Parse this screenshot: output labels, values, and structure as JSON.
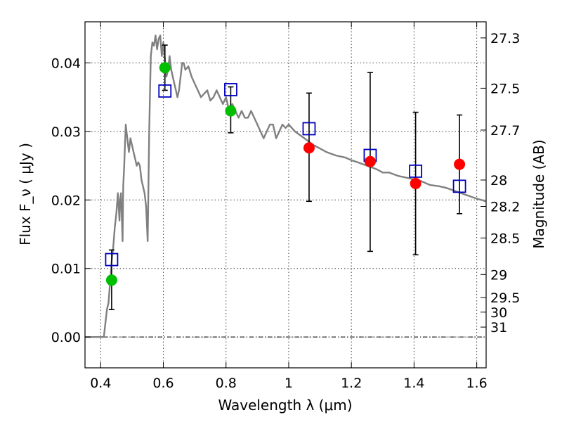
{
  "chart_data": {
    "type": "scatter",
    "title": "",
    "xlabel": "Wavelength  λ (μm)",
    "ylabel": "Flux  F_ν  ( μJy )",
    "ylabel_right": "Magnitude (AB)",
    "xlim": [
      0.35,
      1.63
    ],
    "ylim": [
      -0.0045,
      0.046
    ],
    "grid": true,
    "x_ticks": [
      {
        "value": 0.4,
        "label": "0.4"
      },
      {
        "value": 0.6,
        "label": "0.6"
      },
      {
        "value": 0.8,
        "label": "0.8"
      },
      {
        "value": 1.0,
        "label": "1"
      },
      {
        "value": 1.2,
        "label": "1.2"
      },
      {
        "value": 1.4,
        "label": "1.4"
      },
      {
        "value": 1.6,
        "label": "1.6"
      }
    ],
    "y_ticks": [
      {
        "value": 0.0,
        "label": "0.00"
      },
      {
        "value": 0.01,
        "label": "0.01"
      },
      {
        "value": 0.02,
        "label": "0.02"
      },
      {
        "value": 0.03,
        "label": "0.03"
      },
      {
        "value": 0.04,
        "label": "0.04"
      }
    ],
    "mag_ticks": [
      {
        "mag": 27.3,
        "label": "27.3"
      },
      {
        "mag": 27.5,
        "label": "27.5"
      },
      {
        "mag": 27.7,
        "label": "27.7"
      },
      {
        "mag": 28.0,
        "label": "28"
      },
      {
        "mag": 28.2,
        "label": "28.2"
      },
      {
        "mag": 28.5,
        "label": "28.5"
      },
      {
        "mag": 29.0,
        "label": "29"
      },
      {
        "mag": 29.5,
        "label": "29.5"
      },
      {
        "mag": 30.0,
        "label": "30"
      },
      {
        "mag": 31.0,
        "label": "31"
      }
    ],
    "series": [
      {
        "kind": "line",
        "color": "#808080",
        "x": [
          0.35,
          0.41,
          0.415,
          0.42,
          0.425,
          0.43,
          0.435,
          0.44,
          0.445,
          0.45,
          0.455,
          0.46,
          0.462,
          0.465,
          0.47,
          0.472,
          0.475,
          0.48,
          0.485,
          0.49,
          0.495,
          0.5,
          0.505,
          0.51,
          0.515,
          0.52,
          0.525,
          0.53,
          0.535,
          0.54,
          0.545,
          0.55,
          0.555,
          0.558,
          0.56,
          0.565,
          0.57,
          0.575,
          0.58,
          0.585,
          0.59,
          0.595,
          0.6,
          0.605,
          0.61,
          0.615,
          0.62,
          0.625,
          0.63,
          0.635,
          0.64,
          0.645,
          0.65,
          0.655,
          0.66,
          0.665,
          0.67,
          0.68,
          0.69,
          0.7,
          0.71,
          0.72,
          0.73,
          0.74,
          0.75,
          0.76,
          0.77,
          0.78,
          0.79,
          0.8,
          0.81,
          0.82,
          0.83,
          0.84,
          0.85,
          0.86,
          0.87,
          0.88,
          0.89,
          0.9,
          0.91,
          0.92,
          0.93,
          0.94,
          0.95,
          0.96,
          0.97,
          0.98,
          0.99,
          1.0,
          1.02,
          1.05,
          1.08,
          1.1,
          1.12,
          1.15,
          1.18,
          1.2,
          1.22,
          1.25,
          1.28,
          1.3,
          1.32,
          1.35,
          1.38,
          1.4,
          1.42,
          1.45,
          1.48,
          1.5,
          1.52,
          1.55,
          1.58,
          1.6,
          1.63
        ],
        "y": [
          0.0,
          0.0,
          0.002,
          0.004,
          0.005,
          0.008,
          0.011,
          0.013,
          0.016,
          0.018,
          0.021,
          0.017,
          0.02,
          0.021,
          0.014,
          0.022,
          0.025,
          0.031,
          0.029,
          0.027,
          0.029,
          0.028,
          0.027,
          0.026,
          0.025,
          0.0255,
          0.025,
          0.023,
          0.022,
          0.021,
          0.019,
          0.014,
          0.03,
          0.037,
          0.041,
          0.043,
          0.0425,
          0.044,
          0.042,
          0.0435,
          0.044,
          0.041,
          0.043,
          0.0405,
          0.038,
          0.039,
          0.041,
          0.039,
          0.038,
          0.037,
          0.036,
          0.035,
          0.036,
          0.038,
          0.04,
          0.04,
          0.039,
          0.0395,
          0.038,
          0.037,
          0.036,
          0.035,
          0.0355,
          0.036,
          0.0345,
          0.035,
          0.036,
          0.035,
          0.034,
          0.035,
          0.033,
          0.034,
          0.033,
          0.032,
          0.033,
          0.032,
          0.032,
          0.033,
          0.032,
          0.031,
          0.03,
          0.029,
          0.03,
          0.031,
          0.031,
          0.029,
          0.03,
          0.031,
          0.0305,
          0.031,
          0.03,
          0.029,
          0.028,
          0.0275,
          0.027,
          0.0265,
          0.0262,
          0.0258,
          0.0255,
          0.025,
          0.0245,
          0.024,
          0.024,
          0.0235,
          0.0232,
          0.023,
          0.0228,
          0.0222,
          0.022,
          0.0218,
          0.0215,
          0.021,
          0.0205,
          0.0202,
          0.0198
        ]
      },
      {
        "kind": "open-square",
        "color": "#0000bf",
        "x": [
          0.435,
          0.605,
          0.815,
          1.065,
          1.26,
          1.405,
          1.545
        ],
        "y": [
          0.0113,
          0.0359,
          0.0361,
          0.0304,
          0.0265,
          0.0242,
          0.022
        ]
      },
      {
        "kind": "filled-circle",
        "color": "#00bf00",
        "x": [
          0.435,
          0.605,
          0.815
        ],
        "y": [
          0.0083,
          0.0393,
          0.033
        ],
        "err_low": [
          0.0043,
          0.0033,
          0.0032
        ],
        "err_high": [
          0.0044,
          0.0033,
          0.0035
        ]
      },
      {
        "kind": "filled-circle",
        "color": "#ff0000",
        "x": [
          1.065,
          1.26,
          1.405,
          1.545
        ],
        "y": [
          0.0276,
          0.0256,
          0.0224,
          0.0252
        ],
        "err_low": [
          0.0078,
          0.0131,
          0.0104,
          0.0072
        ],
        "err_high": [
          0.008,
          0.013,
          0.0104,
          0.0072
        ]
      }
    ]
  }
}
